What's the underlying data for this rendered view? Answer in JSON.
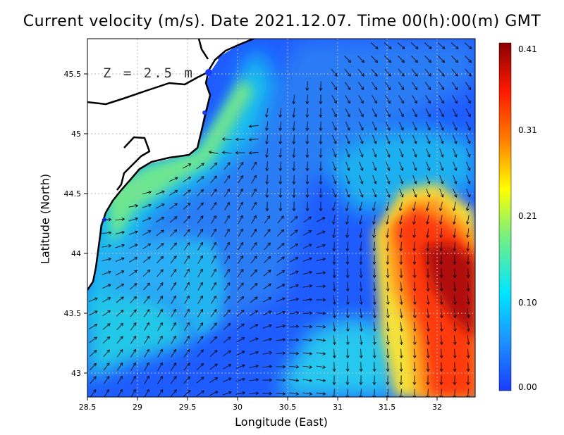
{
  "title": "Current velocity (m/s). Date 2021.12.07. Time 00(h):00(m) GMT",
  "depth_label": "Z = 2.5 m",
  "axes": {
    "xlabel": "Longitude (East)",
    "ylabel": "Latitude (North)",
    "xlim": [
      28.5,
      32.4
    ],
    "ylim": [
      42.8,
      45.8
    ],
    "xticks": [
      "28.5",
      "29",
      "29.5",
      "30",
      "30.5",
      "31",
      "31.5",
      "32"
    ],
    "yticks": [
      "43",
      "43.5",
      "44",
      "44.5",
      "45",
      "45.5"
    ],
    "grid": true
  },
  "colorbar": {
    "ticks": [
      "0.41",
      "0.31",
      "0.21",
      "0.10",
      "0.00"
    ],
    "range": [
      0.0,
      0.41
    ],
    "colors": [
      "#1a3cff",
      "#1e90ff",
      "#00e5ff",
      "#7cf07c",
      "#ffff00",
      "#ff7f00",
      "#ff1a00",
      "#8b0000"
    ]
  },
  "map_colors": {
    "land": "#ffffff",
    "coastline": "#000000",
    "arrows": "#000000",
    "grid": "#bbbbbb"
  }
}
